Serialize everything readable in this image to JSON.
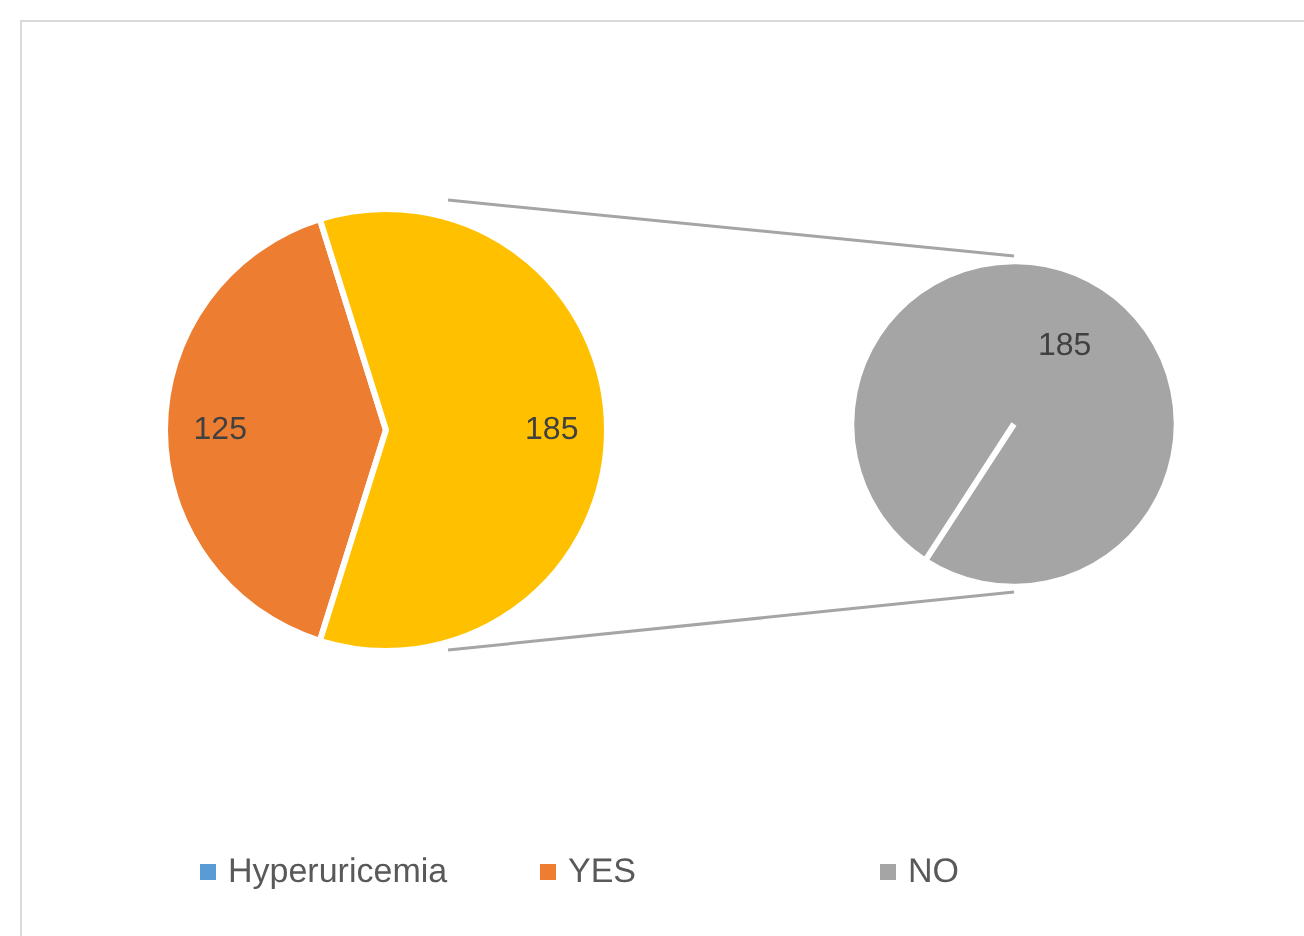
{
  "chart_data": [
    {
      "type": "pie",
      "categories": [
        null,
        null
      ],
      "values": [
        125,
        185
      ],
      "colors": [
        "#ed7d31",
        "#ffc000"
      ],
      "data_labels": true
    },
    {
      "type": "pie",
      "categories": [
        "Hyperuricemia",
        "YES",
        "NO"
      ],
      "values": [
        null,
        null,
        185
      ],
      "colors": [
        "#5b9bd5",
        "#ed7d31",
        "#a5a5a5"
      ],
      "data_labels": true,
      "legend": "bottom"
    }
  ]
}
